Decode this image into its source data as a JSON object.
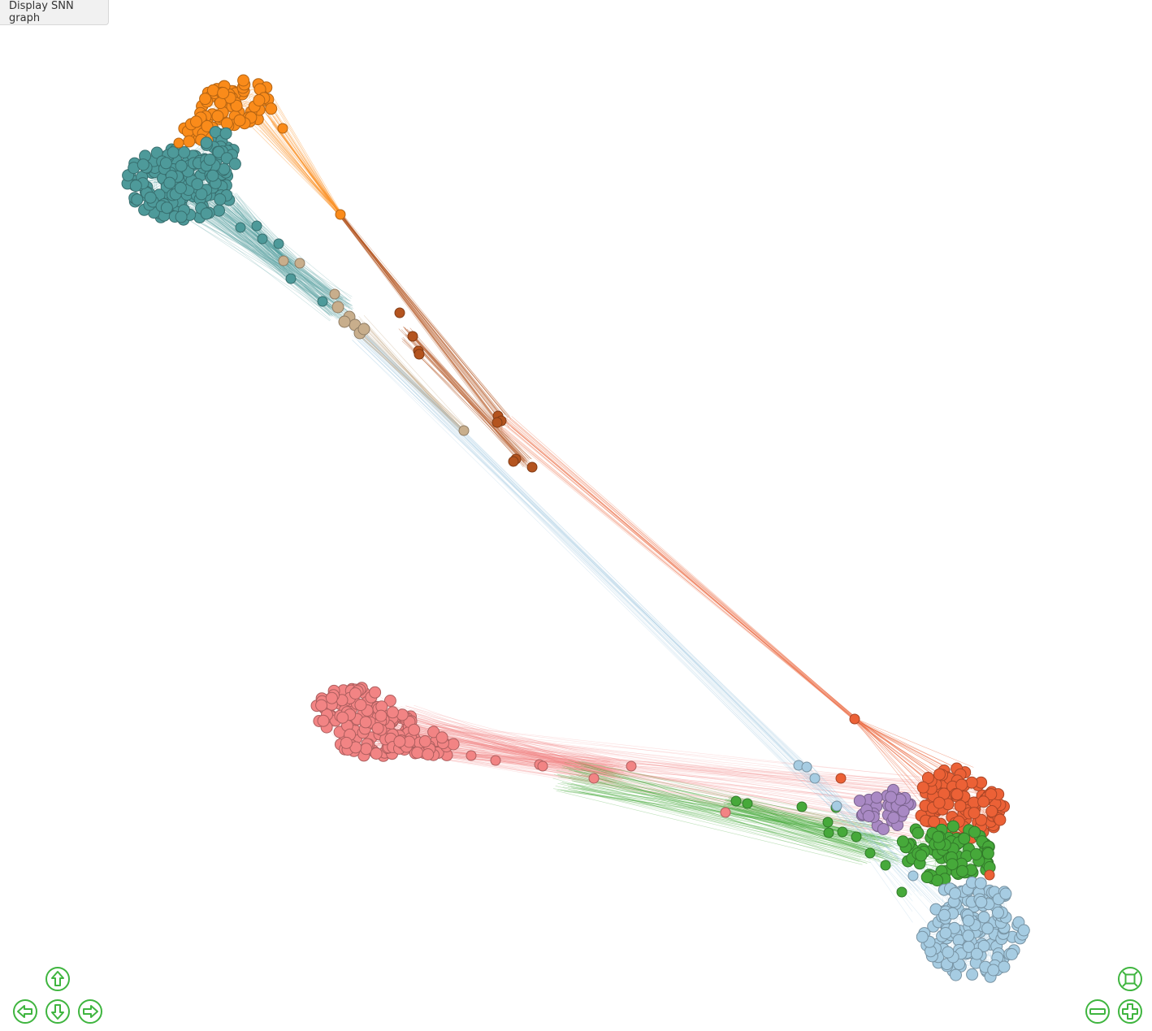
{
  "toolbar": {
    "display_label": "Display SNN graph"
  },
  "navigation": {
    "buttons": [
      {
        "name": "pan-up-button",
        "icon": "arrow-up-icon"
      },
      {
        "name": "pan-left-button",
        "icon": "arrow-left-icon"
      },
      {
        "name": "pan-down-button",
        "icon": "arrow-down-icon"
      },
      {
        "name": "pan-right-button",
        "icon": "arrow-right-icon"
      },
      {
        "name": "zoom-extent-button",
        "icon": "zoom-extent-icon"
      },
      {
        "name": "zoom-out-button",
        "icon": "minus-icon"
      },
      {
        "name": "zoom-in-button",
        "icon": "plus-icon"
      }
    ],
    "color": "#3fb53f"
  },
  "graph": {
    "type": "network",
    "clusters": [
      {
        "color": "#fa8b1a"
      },
      {
        "color": "#4e9a9a"
      },
      {
        "color": "#c8ae8c"
      },
      {
        "color": "#b4541f"
      },
      {
        "color": "#f28484"
      },
      {
        "color": "#ec6136"
      },
      {
        "color": "#a989c4"
      },
      {
        "color": "#46a93a"
      },
      {
        "color": "#a6cce2"
      }
    ]
  }
}
